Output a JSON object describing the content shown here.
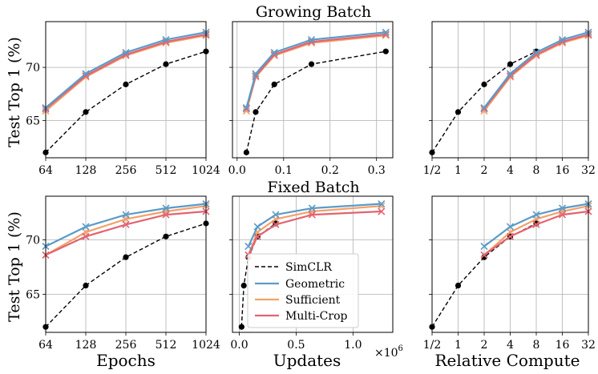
{
  "figure": {
    "titles": {
      "top": "Growing Batch",
      "bottom": "Fixed Batch"
    },
    "ylabel": "Test Top 1 (%)",
    "xlabels": [
      "Epochs",
      "Updates",
      "Relative Compute"
    ],
    "x_multiplier": "×10",
    "x_multiplier_exp": "6",
    "legend": [
      "SimCLR",
      "Geometric",
      "Sufficient",
      "Multi-Crop"
    ]
  },
  "colors": {
    "simclr": "#000000",
    "geometric": "#5b9bc8",
    "sufficient": "#f4a06a",
    "multicrop": "#e36370",
    "grid": "#b0b0b0"
  },
  "chart_data": [
    {
      "id": "growing-epochs",
      "row": 0,
      "col": 0,
      "type": "line",
      "xscale": "log2",
      "xlim": [
        6,
        10
      ],
      "ylim": [
        61.5,
        74.3
      ],
      "xticks": [
        6,
        7,
        8,
        9,
        10
      ],
      "xticklabels": [
        "64",
        "128",
        "256",
        "512",
        "1024"
      ],
      "yticks": [
        65,
        70
      ],
      "yticklabels": [
        "65",
        "70"
      ],
      "series": [
        {
          "name": "SimCLR",
          "key": "simclr",
          "marker": "dot",
          "dash": true,
          "x": [
            64,
            128,
            256,
            512,
            1024
          ],
          "y": [
            62.0,
            65.8,
            68.4,
            70.3,
            71.5
          ]
        },
        {
          "name": "Geometric",
          "key": "geometric",
          "marker": "x",
          "x": [
            64,
            128,
            256,
            512,
            1024
          ],
          "y": [
            66.2,
            69.4,
            71.4,
            72.6,
            73.3
          ]
        },
        {
          "name": "Sufficient",
          "key": "sufficient",
          "marker": "x",
          "x": [
            64,
            128,
            256,
            512,
            1024
          ],
          "y": [
            65.9,
            69.1,
            71.1,
            72.3,
            73.0
          ]
        },
        {
          "name": "Multi-Crop",
          "key": "multicrop",
          "marker": "x",
          "x": [
            64,
            128,
            256,
            512,
            1024
          ],
          "y": [
            66.1,
            69.2,
            71.2,
            72.4,
            73.1
          ]
        }
      ]
    },
    {
      "id": "growing-updates",
      "row": 0,
      "col": 1,
      "type": "line",
      "xscale": "linear",
      "xlim": [
        -0.01,
        0.335
      ],
      "ylim": [
        61.5,
        74.3
      ],
      "xticks": [
        0.0,
        0.1,
        0.2,
        0.3
      ],
      "xticklabels": [
        "0.0",
        "0.1",
        "0.2",
        "0.3"
      ],
      "yticks": [
        65,
        70
      ],
      "yticklabels": [
        "",
        ""
      ],
      "series": [
        {
          "name": "SimCLR",
          "key": "simclr",
          "marker": "dot",
          "dash": true,
          "x": [
            0.02,
            0.04,
            0.08,
            0.16,
            0.32
          ],
          "y": [
            62.0,
            65.8,
            68.4,
            70.3,
            71.5
          ]
        },
        {
          "name": "Geometric",
          "key": "geometric",
          "marker": "x",
          "x": [
            0.02,
            0.04,
            0.08,
            0.16,
            0.32
          ],
          "y": [
            66.2,
            69.4,
            71.4,
            72.6,
            73.3
          ]
        },
        {
          "name": "Sufficient",
          "key": "sufficient",
          "marker": "x",
          "x": [
            0.02,
            0.04,
            0.08,
            0.16,
            0.32
          ],
          "y": [
            65.9,
            69.1,
            71.1,
            72.3,
            73.0
          ]
        },
        {
          "name": "Multi-Crop",
          "key": "multicrop",
          "marker": "x",
          "x": [
            0.02,
            0.04,
            0.08,
            0.16,
            0.32
          ],
          "y": [
            66.1,
            69.2,
            71.2,
            72.4,
            73.1
          ]
        }
      ]
    },
    {
      "id": "growing-compute",
      "row": 0,
      "col": 2,
      "type": "line",
      "xscale": "log2",
      "xlim": [
        -1,
        5
      ],
      "ylim": [
        61.5,
        74.3
      ],
      "xticks": [
        -1,
        0,
        1,
        2,
        3,
        4,
        5
      ],
      "xticklabels": [
        "1/2",
        "1",
        "2",
        "4",
        "8",
        "16",
        "32"
      ],
      "yticks": [
        65,
        70
      ],
      "yticklabels": [
        "",
        ""
      ],
      "series": [
        {
          "name": "SimCLR",
          "key": "simclr",
          "marker": "dot",
          "dash": true,
          "x": [
            0.5,
            1,
            2,
            4,
            8
          ],
          "y": [
            62.0,
            65.8,
            68.4,
            70.3,
            71.5
          ]
        },
        {
          "name": "Geometric",
          "key": "geometric",
          "marker": "x",
          "x": [
            2,
            4,
            8,
            16,
            32
          ],
          "y": [
            66.2,
            69.4,
            71.4,
            72.6,
            73.3
          ]
        },
        {
          "name": "Sufficient",
          "key": "sufficient",
          "marker": "x",
          "x": [
            2,
            4,
            8,
            16,
            32
          ],
          "y": [
            65.9,
            69.1,
            71.1,
            72.3,
            73.0
          ]
        },
        {
          "name": "Multi-Crop",
          "key": "multicrop",
          "marker": "x",
          "x": [
            2,
            4,
            8,
            16,
            32
          ],
          "y": [
            66.1,
            69.2,
            71.2,
            72.4,
            73.1
          ]
        }
      ]
    },
    {
      "id": "fixed-epochs",
      "row": 1,
      "col": 0,
      "type": "line",
      "xscale": "log2",
      "xlim": [
        6,
        10
      ],
      "ylim": [
        61.5,
        74.0
      ],
      "xticks": [
        6,
        7,
        8,
        9,
        10
      ],
      "xticklabels": [
        "64",
        "128",
        "256",
        "512",
        "1024"
      ],
      "yticks": [
        65,
        70
      ],
      "yticklabels": [
        "65",
        "70"
      ],
      "series": [
        {
          "name": "SimCLR",
          "key": "simclr",
          "marker": "dot",
          "dash": true,
          "x": [
            64,
            128,
            256,
            512,
            1024
          ],
          "y": [
            62.0,
            65.8,
            68.4,
            70.3,
            71.5
          ]
        },
        {
          "name": "Geometric",
          "key": "geometric",
          "marker": "x",
          "x": [
            64,
            128,
            256,
            512,
            1024
          ],
          "y": [
            69.4,
            71.2,
            72.3,
            72.9,
            73.3
          ]
        },
        {
          "name": "Sufficient",
          "key": "sufficient",
          "marker": "x",
          "x": [
            64,
            128,
            256,
            512,
            1024
          ],
          "y": [
            68.6,
            70.7,
            71.9,
            72.6,
            73.1
          ]
        },
        {
          "name": "Multi-Crop",
          "key": "multicrop",
          "marker": "x",
          "x": [
            64,
            128,
            256,
            512,
            1024
          ],
          "y": [
            68.6,
            70.3,
            71.4,
            72.3,
            72.6
          ]
        }
      ]
    },
    {
      "id": "fixed-updates",
      "row": 1,
      "col": 1,
      "type": "line",
      "xscale": "linear",
      "xlim": [
        -0.06,
        1.35
      ],
      "ylim": [
        61.5,
        74.0
      ],
      "xticks": [
        0.0,
        0.5,
        1.0
      ],
      "xticklabels": [
        "0.0",
        "0.5",
        "1.0"
      ],
      "yticks": [
        65,
        70
      ],
      "yticklabels": [
        "",
        ""
      ],
      "series": [
        {
          "name": "SimCLR",
          "key": "simclr",
          "marker": "dot",
          "dash": true,
          "x": [
            0.02,
            0.04,
            0.08,
            0.16,
            0.32
          ],
          "y": [
            62.0,
            65.8,
            68.4,
            70.3,
            71.5
          ]
        },
        {
          "name": "Geometric",
          "key": "geometric",
          "marker": "x",
          "x": [
            0.08,
            0.16,
            0.32,
            0.64,
            1.25
          ],
          "y": [
            69.4,
            71.2,
            72.3,
            72.9,
            73.3
          ]
        },
        {
          "name": "Sufficient",
          "key": "sufficient",
          "marker": "x",
          "x": [
            0.08,
            0.16,
            0.32,
            0.64,
            1.25
          ],
          "y": [
            68.6,
            70.7,
            71.9,
            72.6,
            73.1
          ]
        },
        {
          "name": "Multi-Crop",
          "key": "multicrop",
          "marker": "x",
          "x": [
            0.08,
            0.16,
            0.32,
            0.64,
            1.25
          ],
          "y": [
            68.6,
            70.3,
            71.4,
            72.3,
            72.6
          ]
        }
      ]
    },
    {
      "id": "fixed-compute",
      "row": 1,
      "col": 2,
      "type": "line",
      "xscale": "log2",
      "xlim": [
        -1,
        5
      ],
      "ylim": [
        61.5,
        74.0
      ],
      "xticks": [
        -1,
        0,
        1,
        2,
        3,
        4,
        5
      ],
      "xticklabels": [
        "1/2",
        "1",
        "2",
        "4",
        "8",
        "16",
        "32"
      ],
      "yticks": [
        65,
        70
      ],
      "yticklabels": [
        "",
        ""
      ],
      "series": [
        {
          "name": "SimCLR",
          "key": "simclr",
          "marker": "dot",
          "dash": true,
          "x": [
            0.5,
            1,
            2,
            4,
            8
          ],
          "y": [
            62.0,
            65.8,
            68.4,
            70.3,
            71.5
          ]
        },
        {
          "name": "Geometric",
          "key": "geometric",
          "marker": "x",
          "x": [
            2,
            4,
            8,
            16,
            32
          ],
          "y": [
            69.4,
            71.2,
            72.3,
            72.9,
            73.3
          ]
        },
        {
          "name": "Sufficient",
          "key": "sufficient",
          "marker": "x",
          "x": [
            2,
            4,
            8,
            16,
            32
          ],
          "y": [
            68.6,
            70.7,
            71.9,
            72.6,
            73.1
          ]
        },
        {
          "name": "Multi-Crop",
          "key": "multicrop",
          "marker": "x",
          "x": [
            2,
            4,
            8,
            16,
            32
          ],
          "y": [
            68.6,
            70.3,
            71.4,
            72.3,
            72.6
          ]
        }
      ]
    }
  ]
}
